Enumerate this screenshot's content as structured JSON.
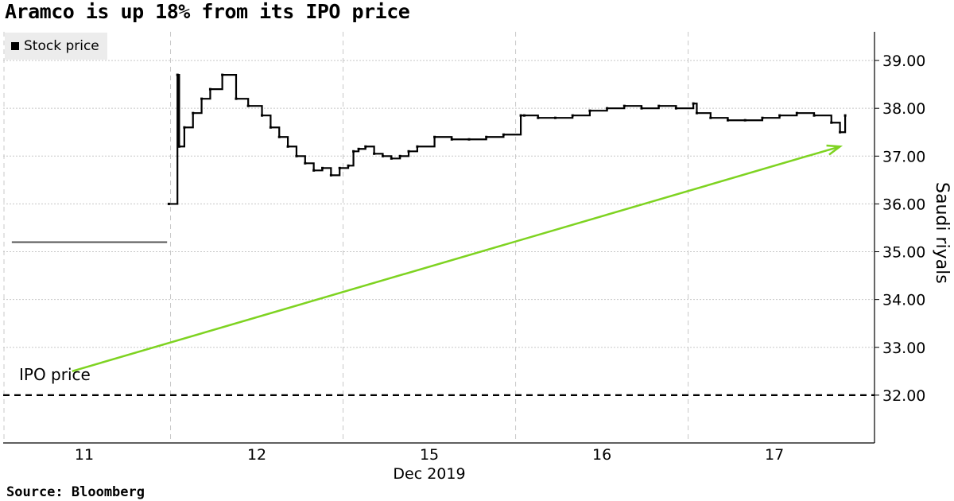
{
  "title": "Aramco is up 18% from its IPO price",
  "legend": {
    "label": "Stock price",
    "swatch_color": "#000000"
  },
  "source": "Source: Bloomberg",
  "annotation": {
    "label": "IPO price",
    "arrow_color": "#7ed321"
  },
  "chart_data": {
    "type": "line",
    "title": "Aramco is up 18% from its IPO price",
    "ylabel": "Saudi riyals",
    "xlabel": "Dec 2019",
    "ylim": [
      31.0,
      39.6
    ],
    "yticks": [
      32,
      33,
      34,
      35,
      36,
      37,
      38,
      39
    ],
    "ytick_labels": [
      "32.00",
      "33.00",
      "34.00",
      "35.00",
      "36.00",
      "37.00",
      "38.00",
      "39.00"
    ],
    "y_axis_position": "right",
    "grid": true,
    "legend_position": "top-left",
    "categories": [
      "11",
      "12",
      "15",
      "16",
      "17"
    ],
    "x_range": [
      0,
      5.05
    ],
    "series": [
      {
        "name": "Stock price",
        "color": "#000000",
        "x": [
          0.05,
          0.95,
          0.96,
          1.01,
          1.02,
          1.05,
          1.1,
          1.15,
          1.2,
          1.27,
          1.35,
          1.42,
          1.5,
          1.55,
          1.6,
          1.65,
          1.7,
          1.75,
          1.8,
          1.85,
          1.9,
          1.95,
          2.0,
          2.03,
          2.06,
          2.1,
          2.15,
          2.2,
          2.25,
          2.3,
          2.35,
          2.4,
          2.5,
          2.6,
          2.7,
          2.8,
          2.9,
          3.0,
          3.02,
          3.1,
          3.2,
          3.3,
          3.4,
          3.5,
          3.6,
          3.7,
          3.8,
          3.9,
          4.0,
          4.02,
          4.1,
          4.2,
          4.3,
          4.4,
          4.5,
          4.6,
          4.7,
          4.8,
          4.85,
          4.88
        ],
        "values": [
          35.2,
          35.2,
          36.0,
          38.7,
          37.2,
          37.6,
          37.9,
          38.2,
          38.4,
          38.7,
          38.2,
          38.05,
          37.85,
          37.6,
          37.4,
          37.2,
          37.0,
          36.85,
          36.7,
          36.75,
          36.6,
          36.75,
          36.8,
          37.1,
          37.15,
          37.2,
          37.05,
          37.0,
          36.95,
          37.0,
          37.1,
          37.2,
          37.4,
          37.35,
          37.35,
          37.4,
          37.45,
          37.85,
          37.85,
          37.8,
          37.8,
          37.85,
          37.95,
          38.0,
          38.05,
          38.0,
          38.05,
          38.0,
          38.1,
          37.9,
          37.8,
          37.75,
          37.75,
          37.8,
          37.85,
          37.9,
          37.85,
          37.7,
          37.5,
          37.85
        ]
      },
      {
        "name": "IPO price",
        "style": "dashed",
        "color": "#000000",
        "x": [
          0,
          5.05
        ],
        "values": [
          32.0,
          32.0
        ]
      }
    ],
    "arrow": {
      "from": [
        0.4,
        32.5
      ],
      "to": [
        4.85,
        37.2
      ]
    }
  }
}
